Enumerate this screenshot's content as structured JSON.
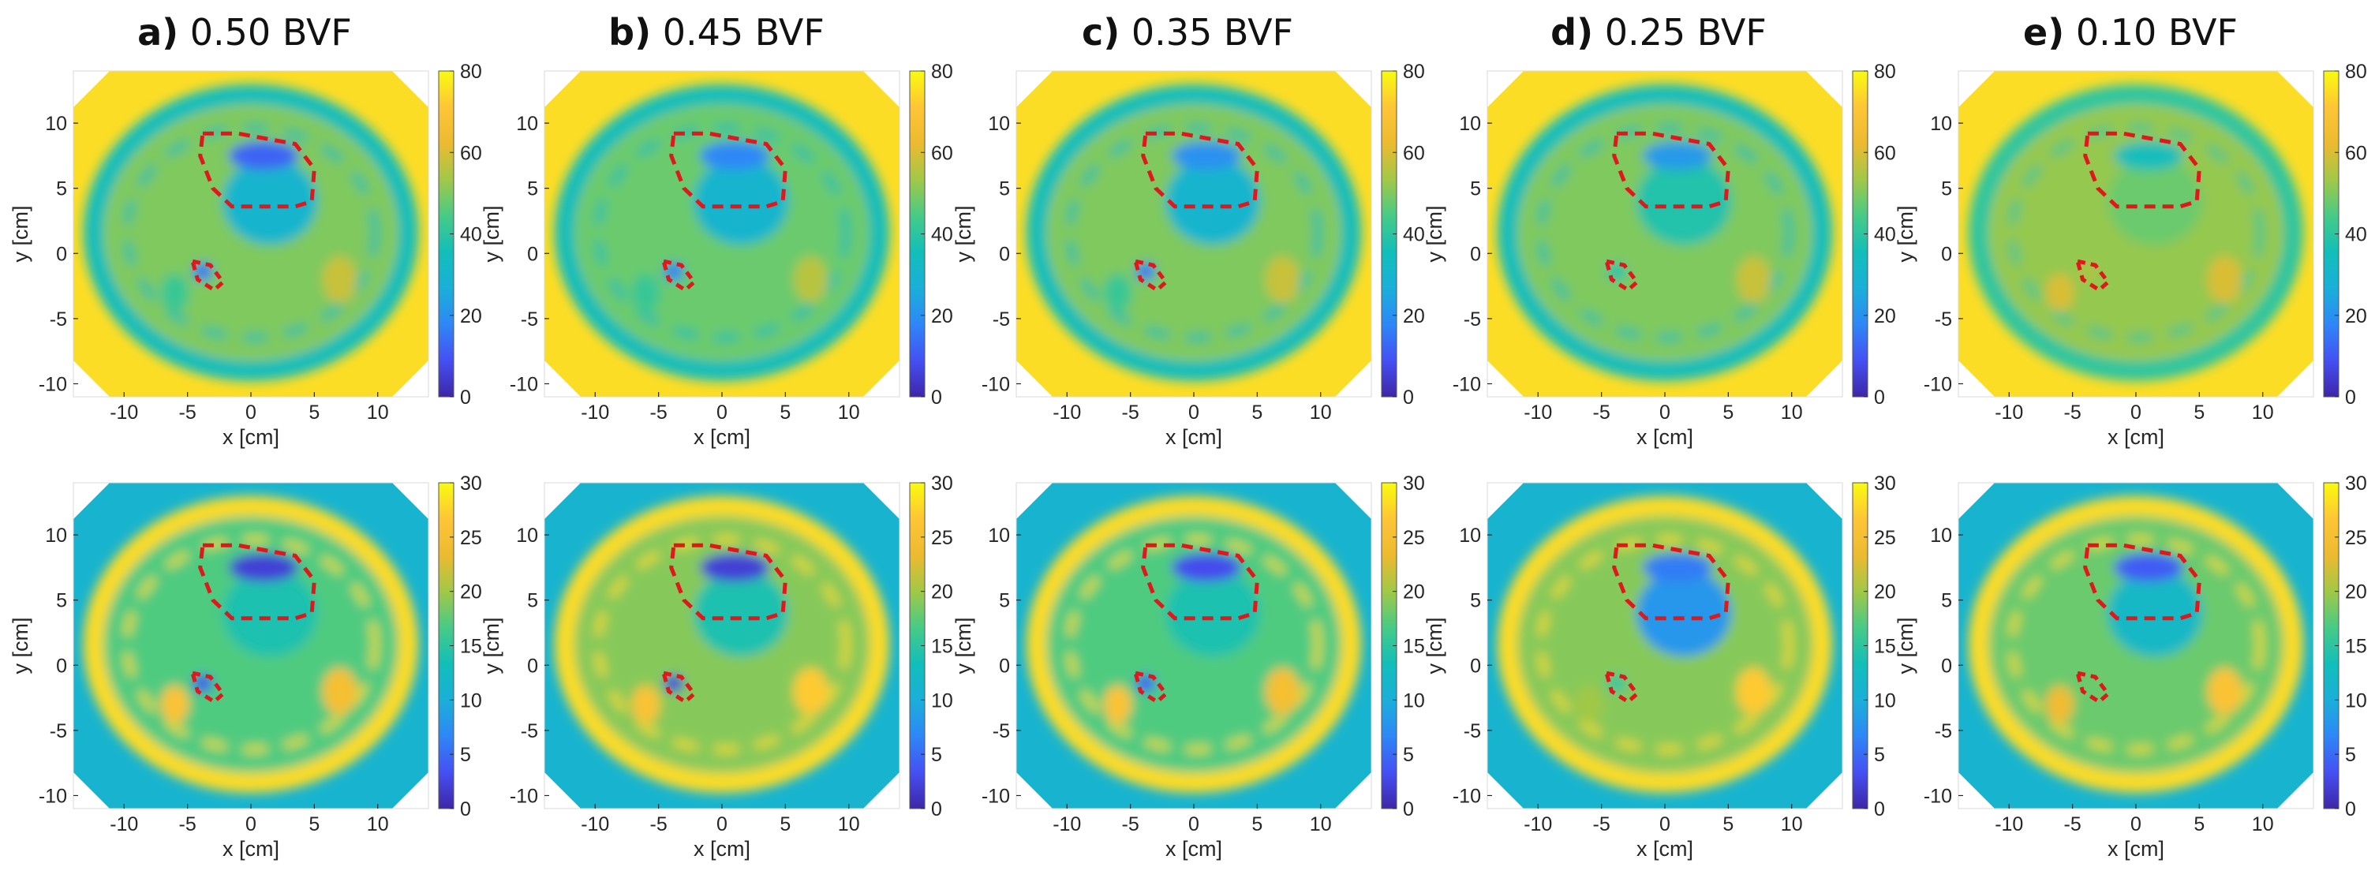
{
  "colors": {
    "background_top": "#FCCF2B",
    "background_bottom": "#2E90E8",
    "roi": "#E0181C",
    "colormap": [
      "#3E26A8",
      "#4550F3",
      "#2E87F7",
      "#1AAFD9",
      "#12BEB9",
      "#47CB86",
      "#A1C847",
      "#ECBA30",
      "#FEC536",
      "#F9FB0E"
    ]
  },
  "chart_data": {
    "type": "heatmap",
    "layout": "2 rows x 5 columns of spatial maps (top row colorbar 0-80, bottom row colorbar 0-30)",
    "panels": [
      {
        "label": "a)",
        "title": "0.50 BVF"
      },
      {
        "label": "b)",
        "title": "0.45 BVF"
      },
      {
        "label": "c)",
        "title": "0.35 BVF"
      },
      {
        "label": "d)",
        "title": "0.25 BVF"
      },
      {
        "label": "e)",
        "title": "0.10 BVF"
      }
    ],
    "xlabel": "x [cm]",
    "ylabel": "y [cm]",
    "xlim": [
      -14,
      14
    ],
    "ylim": [
      -11,
      14
    ],
    "xticks": [
      -10,
      -5,
      0,
      5,
      10
    ],
    "yticks": [
      10,
      5,
      0,
      -5,
      -10
    ],
    "rows": [
      {
        "clim": [
          0,
          80
        ],
        "cticks": [
          80,
          60,
          40,
          20,
          0
        ]
      },
      {
        "clim": [
          0,
          30
        ],
        "cticks": [
          30,
          25,
          20,
          15,
          10,
          5,
          0
        ]
      }
    ],
    "maps": {
      "top": [
        {
          "background": 75,
          "ring": 35,
          "interior": 50,
          "roi1": 12,
          "roi2": 14,
          "extra": 30
        },
        {
          "background": 75,
          "ring": 35,
          "interior": 48,
          "roi1": 18,
          "roi2": 16,
          "extra": 30
        },
        {
          "background": 75,
          "ring": 35,
          "interior": 50,
          "roi1": 20,
          "roi2": 15,
          "extra": 30
        },
        {
          "background": 75,
          "ring": 35,
          "interior": 50,
          "roi1": 22,
          "roi2": 38,
          "extra": 38
        },
        {
          "background": 75,
          "ring": 40,
          "interior": 52,
          "roi1": 35,
          "roi2": 55,
          "extra": 48
        }
      ],
      "bottom": [
        {
          "background": 11,
          "ring": 28,
          "interior": 17,
          "roi1": 2,
          "roi2": 3,
          "extra": 14
        },
        {
          "background": 11,
          "ring": 28,
          "interior": 19,
          "roi1": 2,
          "roi2": 2,
          "extra": 14
        },
        {
          "background": 11,
          "ring": 28,
          "interior": 17,
          "roi1": 3,
          "roi2": 4,
          "extra": 14
        },
        {
          "background": 11,
          "ring": 28,
          "interior": 19,
          "roi1": 6,
          "roi2": 15,
          "extra": 8
        },
        {
          "background": 11,
          "ring": 28,
          "interior": 18,
          "roi1": 4,
          "roi2": 18,
          "extra": 12
        }
      ]
    },
    "roi_regions": [
      "ROI 1: upper region near (1, 7) cm",
      "ROI 2: small region near (-3, -1.5) cm"
    ]
  }
}
